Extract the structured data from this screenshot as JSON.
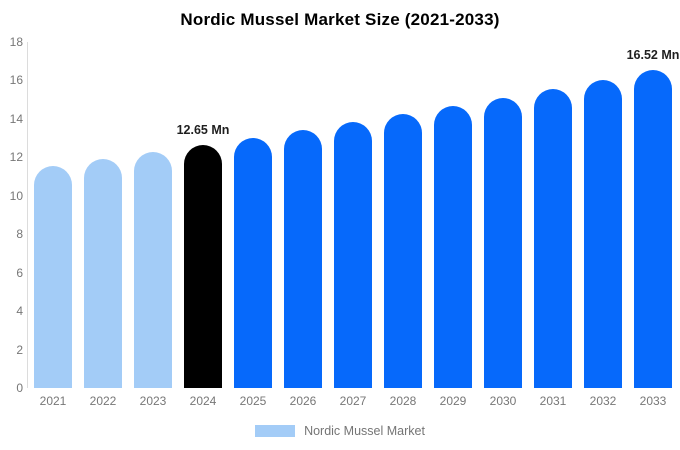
{
  "title": "Nordic Mussel Market Size (2021-2033)",
  "legend": {
    "label": "Nordic Mussel Market",
    "swatch_color": "#a3ccf7"
  },
  "colors": {
    "bar_light_blue": "#a3ccf7",
    "bar_highlight_black": "#000000",
    "bar_primary_blue": "#0669fb",
    "axis_text": "#777777",
    "annotation_text": "#1f1f1f",
    "axis_line": "#dcdcdc",
    "title_text": "#000000"
  },
  "chart_data": {
    "type": "bar",
    "title": "Nordic Mussel Market Size (2021-2033)",
    "xlabel": "",
    "ylabel": "",
    "categories": [
      "2021",
      "2022",
      "2023",
      "2024",
      "2025",
      "2026",
      "2027",
      "2028",
      "2029",
      "2030",
      "2031",
      "2032",
      "2033"
    ],
    "values": [
      11.57,
      11.92,
      12.28,
      12.65,
      13.03,
      13.42,
      13.83,
      14.24,
      14.67,
      15.11,
      15.57,
      16.04,
      16.52
    ],
    "unit": "Mn",
    "bar_colors": [
      "#a3ccf7",
      "#a3ccf7",
      "#a3ccf7",
      "#000000",
      "#0669fb",
      "#0669fb",
      "#0669fb",
      "#0669fb",
      "#0669fb",
      "#0669fb",
      "#0669fb",
      "#0669fb",
      "#0669fb"
    ],
    "annotations": [
      {
        "index": 3,
        "text": "12.65 Mn"
      },
      {
        "index": 12,
        "text": "16.52 Mn"
      }
    ],
    "ylim": [
      0,
      18
    ],
    "yticks": [
      0,
      2,
      4,
      6,
      8,
      10,
      12,
      14,
      16,
      18
    ],
    "grid": false,
    "legend_position": "bottom",
    "legend_entries": [
      "Nordic Mussel Market"
    ]
  }
}
